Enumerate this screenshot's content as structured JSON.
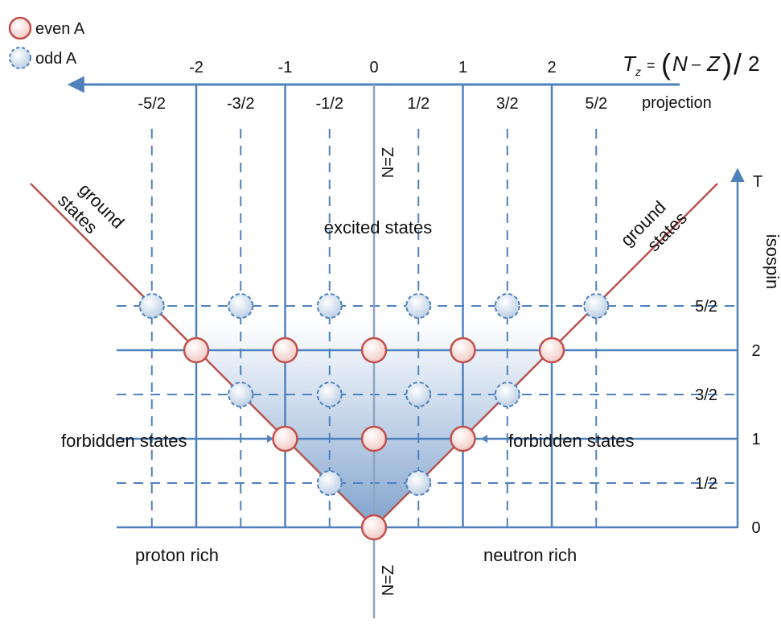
{
  "legend": {
    "even_label": "even A",
    "odd_label": "odd A"
  },
  "top_axis": {
    "integer_ticks": [
      {
        "label": "-2",
        "tz": -2
      },
      {
        "label": "-1",
        "tz": -1
      },
      {
        "label": "0",
        "tz": 0
      },
      {
        "label": "1",
        "tz": 1
      },
      {
        "label": "2",
        "tz": 2
      }
    ],
    "half_ticks": [
      {
        "label": "-5/2",
        "tz": -2.5
      },
      {
        "label": "-3/2",
        "tz": -1.5
      },
      {
        "label": "-1/2",
        "tz": -0.5
      },
      {
        "label": "1/2",
        "tz": 0.5
      },
      {
        "label": "3/2",
        "tz": 1.5
      },
      {
        "label": "5/2",
        "tz": 2.5
      }
    ],
    "formula": "T_z = (N − Z)/2",
    "formula_parts": {
      "T": "T",
      "z": "z",
      "eq": "=",
      "lp": "(",
      "N": "N",
      "minus": "–",
      "Z": "Z",
      "rp": ")",
      "slash": "/",
      "two": "2"
    },
    "projection_label": "projection"
  },
  "right_axis": {
    "title": "T",
    "isospin_label": "isospin",
    "ticks": [
      {
        "label": "0",
        "t": 0
      },
      {
        "label": "1/2",
        "t": 0.5
      },
      {
        "label": "1",
        "t": 1
      },
      {
        "label": "3/2",
        "t": 1.5
      },
      {
        "label": "2",
        "t": 2
      },
      {
        "label": "5/2",
        "t": 2.5
      }
    ]
  },
  "labels": {
    "nz_top": "N=Z",
    "nz_bottom": "N=Z",
    "excited_states": "excited states",
    "forbidden_left": "forbidden states",
    "forbidden_right": "forbidden states",
    "ground_left_1": "ground",
    "ground_left_2": "states",
    "ground_right_1": "ground",
    "ground_right_2": "states",
    "proton_rich": "proton rich",
    "neutron_rich": "neutron rich"
  },
  "states": {
    "even": [
      {
        "tz": 0,
        "t": 0
      },
      {
        "tz": -1,
        "t": 1
      },
      {
        "tz": 0,
        "t": 1
      },
      {
        "tz": 1,
        "t": 1
      },
      {
        "tz": -2,
        "t": 2
      },
      {
        "tz": -1,
        "t": 2
      },
      {
        "tz": 0,
        "t": 2
      },
      {
        "tz": 1,
        "t": 2
      },
      {
        "tz": 2,
        "t": 2
      }
    ],
    "odd": [
      {
        "tz": -0.5,
        "t": 0.5
      },
      {
        "tz": 0.5,
        "t": 0.5
      },
      {
        "tz": -1.5,
        "t": 1.5
      },
      {
        "tz": -0.5,
        "t": 1.5
      },
      {
        "tz": 0.5,
        "t": 1.5
      },
      {
        "tz": 1.5,
        "t": 1.5
      },
      {
        "tz": -2.5,
        "t": 2.5
      },
      {
        "tz": -1.5,
        "t": 2.5
      },
      {
        "tz": -0.5,
        "t": 2.5
      },
      {
        "tz": 0.5,
        "t": 2.5
      },
      {
        "tz": 1.5,
        "t": 2.5
      },
      {
        "tz": 2.5,
        "t": 2.5
      }
    ]
  },
  "colors": {
    "grid_blue": "#4f81bd",
    "ground_line": "#b85450",
    "even_fill": "#f6d4d1",
    "even_stroke": "#c0504d",
    "odd_fill": "#dbe5f1",
    "odd_stroke": "#4f81bd",
    "cone_top": "#ffffff",
    "cone_bottom": "#7fa2cc"
  }
}
